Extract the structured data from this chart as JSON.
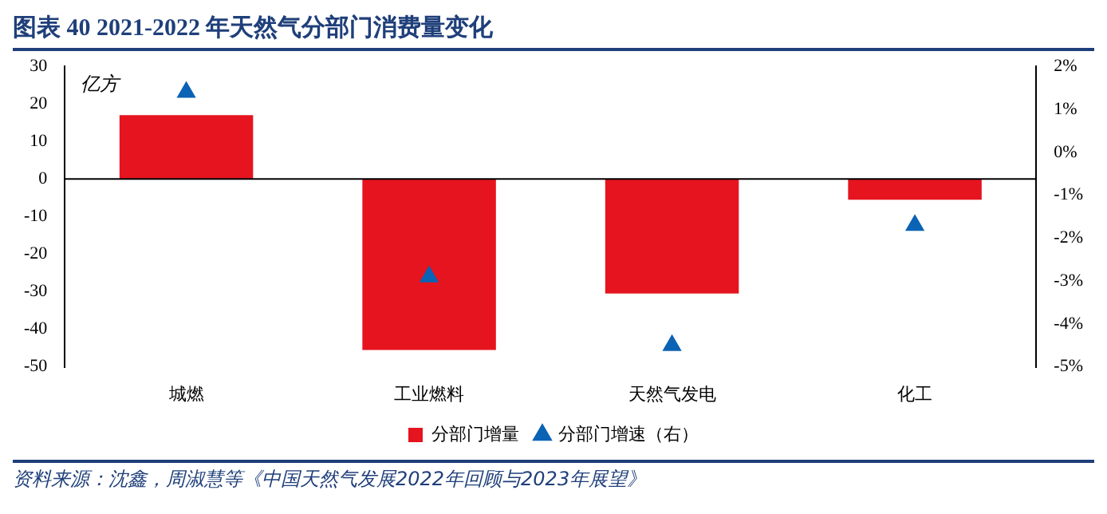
{
  "chart_data": {
    "type": "bar",
    "title": "图表 40  2021-2022 年天然气分部门消费量变化",
    "categories": [
      "城燃",
      "工业燃料",
      "天然气发电",
      "化工"
    ],
    "series": [
      {
        "name": "分部门增量",
        "color": "#e5141f",
        "values": [
          17,
          -45.5,
          -30.5,
          -5.5
        ]
      },
      {
        "name": "分部门增速（右）",
        "type": "scatter",
        "axis": "y2",
        "color": "#0b63b5",
        "marker": "triangle",
        "values": [
          1.4,
          -2.9,
          -4.5,
          -1.7
        ]
      }
    ],
    "ylabel": "亿方",
    "ylim": [
      -50,
      30
    ],
    "yticks": [
      -50,
      -40,
      -30,
      -20,
      -10,
      0,
      10,
      20,
      30
    ],
    "y2lim": [
      -5,
      2
    ],
    "y2ticks": [
      {
        "value": -5,
        "label": "-5%"
      },
      {
        "value": -4,
        "label": "-4%"
      },
      {
        "value": -3,
        "label": "-3%"
      },
      {
        "value": -2,
        "label": "-2%"
      },
      {
        "value": -1,
        "label": "-1%"
      },
      {
        "value": 0,
        "label": "0%"
      },
      {
        "value": 1,
        "label": "1%"
      },
      {
        "value": 2,
        "label": "2%"
      }
    ],
    "ref_lines": [
      {
        "axis": "y",
        "value": 0,
        "color": "#000000"
      }
    ],
    "grid": false,
    "legend": "bottom",
    "annotations": [
      "资料来源：沈鑫，周淑慧等《中国天然气发展2022年回顾与2023年展望》"
    ]
  }
}
